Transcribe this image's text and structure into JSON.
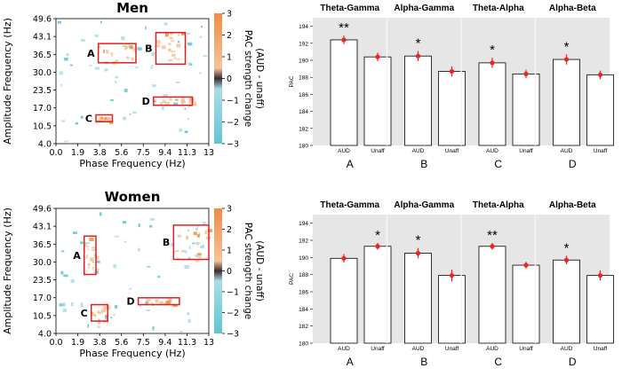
{
  "chart_data": [
    {
      "type": "heatmap",
      "panel": "men",
      "title": "Men",
      "xlabel": "Phase Frequency (Hz)",
      "ylabel": "Amplitude Frequency (Hz)",
      "x_ticks": [
        "0.0",
        "1.9",
        "3.8",
        "5.6",
        "7.5",
        "9.4",
        "11.3",
        "13"
      ],
      "y_ticks": [
        "4.0",
        "10.5",
        "17.0",
        "23.5",
        "30.0",
        "36.5",
        "43.1",
        "49.6"
      ],
      "xlim": [
        0,
        13
      ],
      "ylim": [
        4,
        49.6
      ],
      "colorbar": {
        "label_line1": "PAC strength change",
        "label_line2": "(AUD - unaff)",
        "ticks": [
          "3",
          "2",
          "1",
          "0",
          "−1",
          "−2",
          "−3"
        ],
        "range": [
          -3,
          3
        ],
        "colors": [
          "#5fc6d2",
          "#a9dde6",
          "#3a2a2e",
          "#f6c39b",
          "#f08c46"
        ]
      },
      "regions": [
        {
          "label": "A",
          "x": [
            3.6,
            6.8
          ],
          "y": [
            33.5,
            40.5
          ]
        },
        {
          "label": "B",
          "x": [
            8.5,
            11.0
          ],
          "y": [
            33.0,
            44.5
          ]
        },
        {
          "label": "C",
          "x": [
            3.4,
            4.8
          ],
          "y": [
            12.0,
            14.5
          ]
        },
        {
          "label": "D",
          "x": [
            8.3,
            11.6
          ],
          "y": [
            18.0,
            21.0
          ]
        }
      ],
      "box_color": "#e02020"
    },
    {
      "type": "heatmap",
      "panel": "women",
      "title": "Women",
      "xlabel": "Phase Frequency (Hz)",
      "ylabel": "Amplitude Frequency (Hz)",
      "x_ticks": [
        "0.0",
        "1.9",
        "3.8",
        "5.6",
        "7.5",
        "9.4",
        "11.3",
        "13"
      ],
      "y_ticks": [
        "4.0",
        "10.5",
        "17.0",
        "23.5",
        "30.0",
        "36.5",
        "43.1",
        "49.6"
      ],
      "xlim": [
        0,
        13
      ],
      "ylim": [
        4,
        49.6
      ],
      "colorbar": {
        "label_line1": "PAC strength change",
        "label_line2": "(AUD - unaff)",
        "ticks": [
          "3",
          "2",
          "1",
          "0",
          "−1",
          "−2",
          "−3"
        ],
        "range": [
          -3,
          3
        ],
        "colors": [
          "#5fc6d2",
          "#a9dde6",
          "#3a2a2e",
          "#f6c39b",
          "#f08c46"
        ]
      },
      "regions": [
        {
          "label": "A",
          "x": [
            2.4,
            3.4
          ],
          "y": [
            25.5,
            39.5
          ]
        },
        {
          "label": "B",
          "x": [
            10.0,
            13.0
          ],
          "y": [
            31.0,
            43.5
          ]
        },
        {
          "label": "C",
          "x": [
            3.0,
            4.4
          ],
          "y": [
            8.5,
            14.5
          ]
        },
        {
          "label": "D",
          "x": [
            7.0,
            10.5
          ],
          "y": [
            14.5,
            17.0
          ]
        }
      ],
      "box_color": "#e02020"
    },
    {
      "type": "bar",
      "panel": "men-bars",
      "ylabel": "PAC",
      "ylim": [
        180,
        195
      ],
      "y_ticks": [
        180,
        182,
        184,
        186,
        188,
        190,
        192,
        194
      ],
      "groups": [
        {
          "title": "Theta-Gamma",
          "letter": "A",
          "categories": [
            "AUD",
            "Unaff"
          ],
          "values": [
            192.4,
            190.4
          ],
          "errors": [
            0.5,
            0.5
          ],
          "sig": "**"
        },
        {
          "title": "Alpha-Gamma",
          "letter": "B",
          "categories": [
            "AUD",
            "Unaff"
          ],
          "values": [
            190.5,
            188.7
          ],
          "errors": [
            0.6,
            0.6
          ],
          "sig": "*"
        },
        {
          "title": "Theta-Alpha",
          "letter": "C",
          "categories": [
            "AUD",
            "Unaff"
          ],
          "values": [
            189.7,
            188.4
          ],
          "errors": [
            0.6,
            0.5
          ],
          "sig": "*"
        },
        {
          "title": "Alpha-Beta",
          "letter": "D",
          "categories": [
            "AUD",
            "Unaff"
          ],
          "values": [
            190.1,
            188.3
          ],
          "errors": [
            0.6,
            0.5
          ],
          "sig": "*"
        }
      ],
      "background": "#e6e6e6",
      "marker_color": "#ee2222"
    },
    {
      "type": "bar",
      "panel": "women-bars",
      "ylabel": "PAC",
      "ylim": [
        180,
        195
      ],
      "y_ticks": [
        180,
        182,
        184,
        186,
        188,
        190,
        192,
        194
      ],
      "groups": [
        {
          "title": "Theta-Gamma",
          "letter": "A",
          "categories": [
            "AUD",
            "Unaff"
          ],
          "values": [
            189.9,
            191.3
          ],
          "errors": [
            0.5,
            0.4
          ],
          "sig": "*",
          "sig_on": "Unaff"
        },
        {
          "title": "Alpha-Gamma",
          "letter": "B",
          "categories": [
            "AUD",
            "Unaff"
          ],
          "values": [
            190.5,
            187.9
          ],
          "errors": [
            0.6,
            0.7
          ],
          "sig": "*",
          "sig_on": "AUD"
        },
        {
          "title": "Theta-Alpha",
          "letter": "C",
          "categories": [
            "AUD",
            "Unaff"
          ],
          "values": [
            191.3,
            189.1
          ],
          "errors": [
            0.4,
            0.4
          ],
          "sig": "**",
          "sig_on": "AUD"
        },
        {
          "title": "Alpha-Beta",
          "letter": "D",
          "categories": [
            "AUD",
            "Unaff"
          ],
          "values": [
            189.7,
            187.9
          ],
          "errors": [
            0.5,
            0.6
          ],
          "sig": "*",
          "sig_on": "AUD"
        }
      ],
      "background": "#e6e6e6",
      "marker_color": "#ee2222"
    }
  ]
}
